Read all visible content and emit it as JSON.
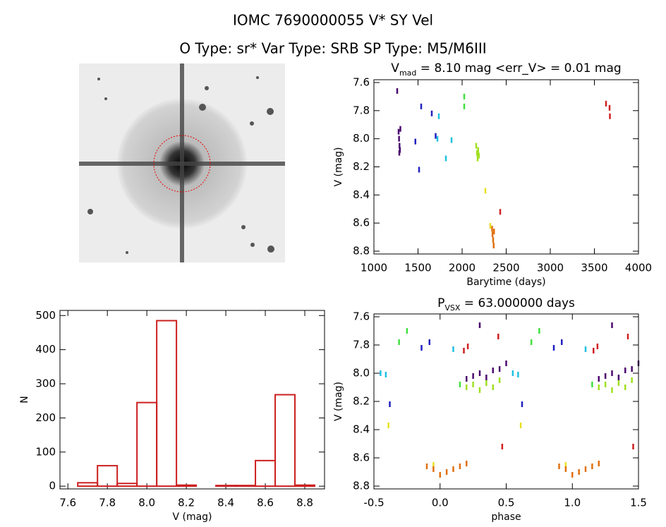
{
  "header": {
    "title": "IOMC 7690000055     V* SY Vel",
    "subtitle": "O Type: sr*  Var Type: SRB  SP Type: M5/M6III"
  },
  "chart_data": [
    {
      "type": "scatter",
      "title": [
        "V",
        "mad",
        " = 8.10 mag <err_V> = 0.01 mag"
      ],
      "x_label": "Barytime (days)",
      "y_label": "V (mag)",
      "xlim": [
        1000,
        4000
      ],
      "xticks": [
        1000,
        1500,
        2000,
        2500,
        3000,
        3500,
        4000
      ],
      "ylim": [
        8.82,
        7.58
      ],
      "yticks": [
        7.6,
        7.8,
        {
          "value": 8.0,
          "label": "8.0"
        },
        8.2,
        8.4,
        8.6,
        8.8
      ],
      "series": [
        {
          "color": "#4b0a6e",
          "x": [
            1264,
            1280,
            1285,
            1290,
            1295,
            1300,
            1288
          ],
          "y": [
            7.66,
            7.95,
            8.0,
            8.05,
            8.08,
            7.93,
            8.1
          ]
        },
        {
          "color": "#2020c0",
          "x": [
            1470,
            1512,
            1536,
            1656,
            1700
          ],
          "y": [
            8.02,
            8.22,
            7.77,
            7.82,
            7.98
          ]
        },
        {
          "color": "#20c0e0",
          "x": [
            1736,
            1720,
            1816,
            1880
          ],
          "y": [
            7.84,
            8.0,
            8.14,
            8.01
          ]
        },
        {
          "color": "#40e040",
          "x": [
            2024,
            2024
          ],
          "y": [
            7.7,
            7.77
          ]
        },
        {
          "color": "#a0e020",
          "x": [
            2160,
            2170,
            2176,
            2182,
            2190
          ],
          "y": [
            8.05,
            8.1,
            8.14,
            8.08,
            8.12
          ]
        },
        {
          "color": "#e8e020",
          "x": [
            2264,
            2320
          ],
          "y": [
            8.37,
            8.62
          ]
        },
        {
          "color": "#e07010",
          "x": [
            2340,
            2345,
            2352,
            2358,
            2362
          ],
          "y": [
            8.64,
            8.68,
            8.72,
            8.76,
            8.66
          ]
        },
        {
          "color": "#d02020",
          "x": [
            2432,
            3632,
            3672,
            3676
          ],
          "y": [
            8.52,
            7.75,
            7.78,
            7.84
          ]
        }
      ]
    },
    {
      "type": "histogram",
      "x_label": "V (mag)",
      "y_label": "N",
      "color": "#cc1f1f",
      "bins": [
        7.65,
        7.75,
        7.85,
        7.95,
        8.05,
        8.15,
        8.25,
        8.35,
        8.45,
        8.55,
        8.65,
        8.75,
        8.85
      ],
      "values": [
        10,
        60,
        8,
        245,
        485,
        3,
        0,
        2,
        2,
        75,
        268,
        3
      ],
      "xlim": [
        7.56,
        8.9
      ],
      "xticks": [
        7.6,
        7.8,
        {
          "value": 8.0,
          "label": "8.0"
        },
        8.2,
        8.4,
        8.6,
        8.8
      ],
      "ylim": [
        -8,
        515
      ],
      "yticks": [
        0,
        100,
        200,
        300,
        400,
        500
      ]
    },
    {
      "type": "scatter",
      "title": [
        "P",
        "VSX",
        " = 63.000000 days"
      ],
      "x_label": "phase",
      "y_label": "V (mag)",
      "xlim": [
        -0.5,
        1.5
      ],
      "xticks": [
        -0.5,
        {
          "value": 0,
          "label": "0.0"
        },
        0.5,
        {
          "value": 1,
          "label": "1.0"
        },
        1.5
      ],
      "ylim": [
        8.82,
        7.58
      ],
      "yticks": [
        7.6,
        7.8,
        {
          "value": 8.0,
          "label": "8.0"
        },
        8.2,
        8.4,
        8.6,
        8.8
      ],
      "series": [
        {
          "color": "#4b0a6e",
          "x": [
            0.2,
            0.25,
            0.3,
            0.35,
            0.4,
            0.45,
            0.5,
            0.3,
            1.2,
            1.25,
            1.3,
            1.35,
            1.4,
            1.45,
            1.5,
            1.3
          ],
          "y": [
            8.04,
            8.02,
            8.0,
            8.03,
            7.98,
            7.97,
            7.93,
            7.66,
            8.04,
            8.02,
            8.0,
            8.03,
            7.98,
            7.97,
            7.93,
            7.66
          ]
        },
        {
          "color": "#2020c0",
          "x": [
            -0.38,
            -0.14,
            -0.08,
            0.62,
            0.86,
            0.92
          ],
          "y": [
            8.22,
            7.82,
            7.78,
            8.22,
            7.82,
            7.78
          ]
        },
        {
          "color": "#20c0e0",
          "x": [
            -0.45,
            -0.41,
            0.1,
            0.55,
            0.59,
            1.1
          ],
          "y": [
            8.0,
            8.01,
            7.83,
            8.0,
            8.01,
            7.83
          ]
        },
        {
          "color": "#40e040",
          "x": [
            -0.31,
            -0.25,
            0.15,
            0.69,
            0.75,
            1.15
          ],
          "y": [
            7.78,
            7.7,
            8.08,
            7.78,
            7.7,
            8.08
          ]
        },
        {
          "color": "#a0e020",
          "x": [
            0.2,
            0.25,
            0.3,
            0.35,
            0.4,
            0.45,
            1.2,
            1.25,
            1.3,
            1.35,
            1.4,
            1.45
          ],
          "y": [
            8.1,
            8.08,
            8.12,
            8.07,
            8.1,
            8.05,
            8.1,
            8.08,
            8.12,
            8.07,
            8.1,
            8.05
          ]
        },
        {
          "color": "#e8e020",
          "x": [
            -0.39,
            0.61,
            -0.05,
            0.95
          ],
          "y": [
            8.37,
            8.37,
            8.65,
            8.65
          ]
        },
        {
          "color": "#e07010",
          "x": [
            -0.1,
            -0.05,
            0,
            0.05,
            0.1,
            0.15,
            0.2,
            0.9,
            0.95,
            1.0,
            1.05,
            1.1,
            1.15,
            1.2
          ],
          "y": [
            8.66,
            8.68,
            8.72,
            8.7,
            8.68,
            8.66,
            8.64,
            8.66,
            8.68,
            8.72,
            8.7,
            8.68,
            8.66,
            8.64
          ]
        },
        {
          "color": "#d02020",
          "x": [
            0.18,
            0.21,
            0.44,
            0.47,
            1.16,
            1.19,
            1.42,
            1.46
          ],
          "y": [
            7.84,
            7.81,
            7.74,
            8.52,
            7.84,
            7.81,
            7.74,
            8.52
          ]
        }
      ]
    }
  ]
}
